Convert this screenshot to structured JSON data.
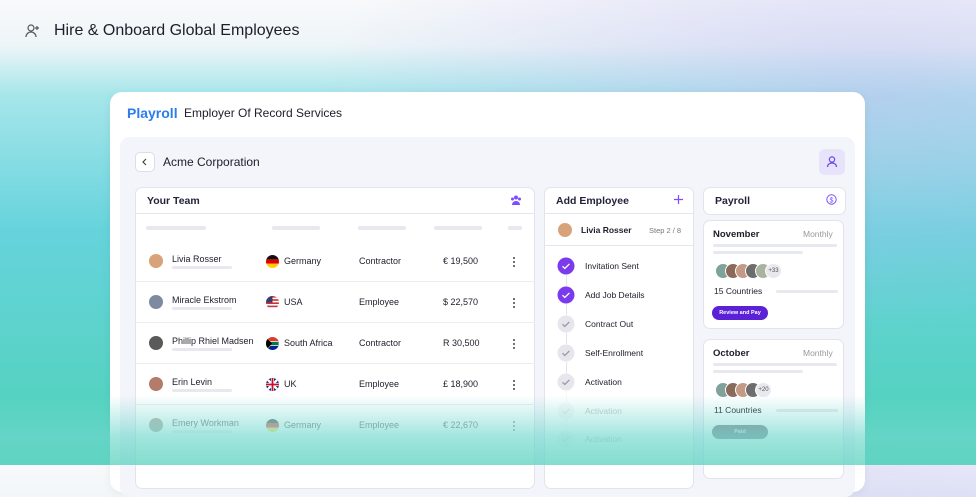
{
  "header": {
    "title": "Hire & Onboard Global Employees"
  },
  "app": {
    "brand": "Playroll",
    "subtitle": "Employer Of Record Services",
    "company": "Acme Corporation"
  },
  "team": {
    "title": "Your Team",
    "rows": [
      {
        "name": "Livia Rosser",
        "country": "Germany",
        "type": "Contractor",
        "salary": "€ 19,500"
      },
      {
        "name": "Miracle Ekstrom",
        "country": "USA",
        "type": "Employee",
        "salary": "$ 22,570"
      },
      {
        "name": "Phillip Rhiel Madsen",
        "country": "South Africa",
        "type": "Contractor",
        "salary": "R 30,500"
      },
      {
        "name": "Erin Levin",
        "country": "UK",
        "type": "Employee",
        "salary": "£ 18,900"
      },
      {
        "name": "Emery Workman",
        "country": "Germany",
        "type": "Employee",
        "salary": "€ 22,670"
      }
    ]
  },
  "add_employee": {
    "title": "Add Employee",
    "person": "Livia Rosser",
    "step": "Step 2 / 8",
    "steps": [
      {
        "label": "Invitation Sent",
        "done": true
      },
      {
        "label": "Add Job Details",
        "done": true
      },
      {
        "label": "Contract Out",
        "done": false
      },
      {
        "label": "Self-Enrollment",
        "done": false
      },
      {
        "label": "Activation",
        "done": false
      },
      {
        "label": "Activation",
        "done": false
      },
      {
        "label": "Activation",
        "done": false
      }
    ]
  },
  "payroll": {
    "title": "Payroll",
    "cards": [
      {
        "month": "November",
        "frequency": "Monthly",
        "extra": "+33",
        "countries": "15 Countries",
        "action": "Review and Pay"
      },
      {
        "month": "October",
        "frequency": "Monthly",
        "extra": "+20",
        "countries": "11 Countries",
        "action": "Paid"
      }
    ]
  }
}
